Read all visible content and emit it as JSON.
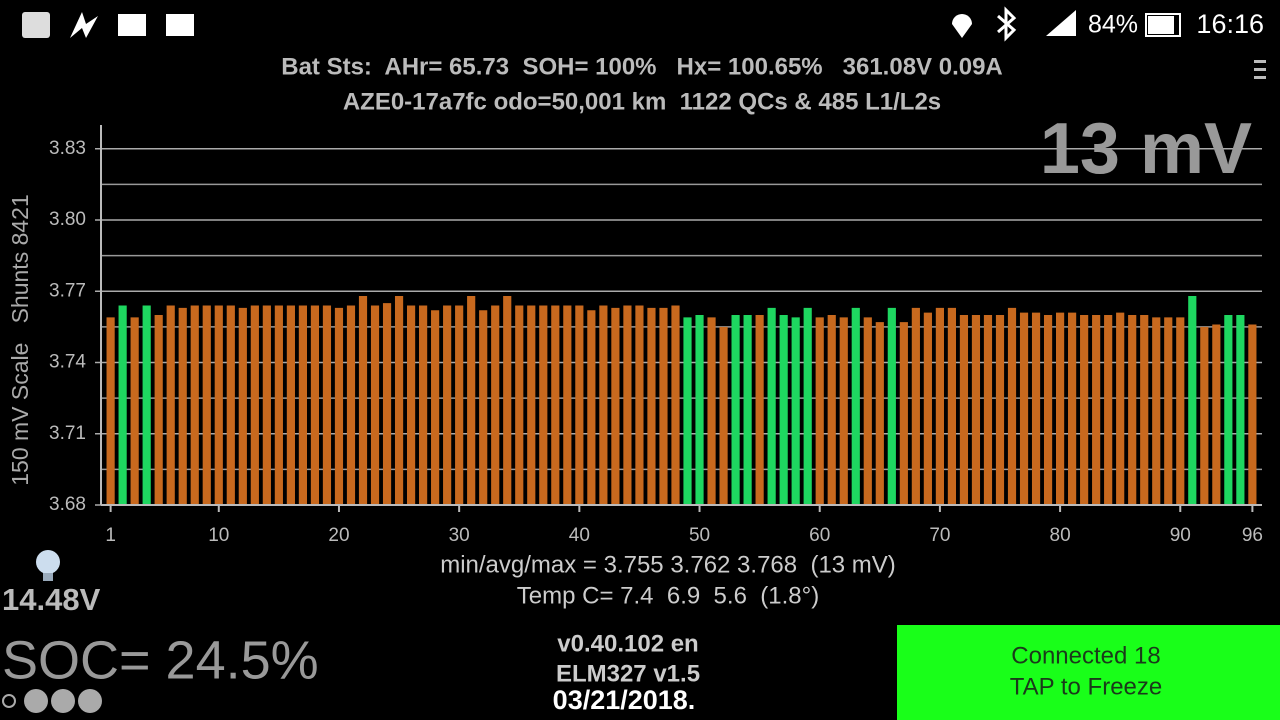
{
  "status_bar": {
    "battery": "84%",
    "time": "16:16"
  },
  "header": {
    "line1": "Bat Sts:  AHr= 65.73  SOH= 100%   Hx= 100.65%   361.08V 0.09A",
    "line2": "AZE0-17a7fc odo=50,001 km  1122 QCs & 485 L1/L2s"
  },
  "chart_data": {
    "type": "bar",
    "overlay": "13 mV",
    "ylabel": "150 mV Scale   Shunts 8421",
    "x": [
      1,
      2,
      3,
      4,
      5,
      6,
      7,
      8,
      9,
      10,
      11,
      12,
      13,
      14,
      15,
      16,
      17,
      18,
      19,
      20,
      21,
      22,
      23,
      24,
      25,
      26,
      27,
      28,
      29,
      30,
      31,
      32,
      33,
      34,
      35,
      36,
      37,
      38,
      39,
      40,
      41,
      42,
      43,
      44,
      45,
      46,
      47,
      48,
      49,
      50,
      51,
      52,
      53,
      54,
      55,
      56,
      57,
      58,
      59,
      60,
      61,
      62,
      63,
      64,
      65,
      66,
      67,
      68,
      69,
      70,
      71,
      72,
      73,
      74,
      75,
      76,
      77,
      78,
      79,
      80,
      81,
      82,
      83,
      84,
      85,
      86,
      87,
      88,
      89,
      90,
      91,
      92,
      93,
      94,
      95,
      96
    ],
    "values": [
      3.759,
      3.764,
      3.759,
      3.764,
      3.76,
      3.764,
      3.763,
      3.764,
      3.764,
      3.764,
      3.764,
      3.763,
      3.764,
      3.764,
      3.764,
      3.764,
      3.764,
      3.764,
      3.764,
      3.763,
      3.764,
      3.768,
      3.764,
      3.765,
      3.768,
      3.764,
      3.764,
      3.762,
      3.764,
      3.764,
      3.768,
      3.762,
      3.764,
      3.768,
      3.764,
      3.764,
      3.764,
      3.764,
      3.764,
      3.764,
      3.762,
      3.764,
      3.763,
      3.764,
      3.764,
      3.763,
      3.763,
      3.764,
      3.759,
      3.76,
      3.759,
      3.755,
      3.76,
      3.76,
      3.76,
      3.763,
      3.76,
      3.759,
      3.763,
      3.759,
      3.76,
      3.759,
      3.763,
      3.759,
      3.757,
      3.763,
      3.757,
      3.763,
      3.761,
      3.763,
      3.763,
      3.76,
      3.76,
      3.76,
      3.76,
      3.763,
      3.761,
      3.761,
      3.76,
      3.761,
      3.761,
      3.76,
      3.76,
      3.76,
      3.761,
      3.76,
      3.76,
      3.759,
      3.759,
      3.759,
      3.768,
      3.755,
      3.756,
      3.76,
      3.76,
      3.756
    ],
    "colors": [
      "#c8691e",
      "#1ed760",
      "#c8691e",
      "#1ed760",
      "#c8691e",
      "#c8691e",
      "#c8691e",
      "#c8691e",
      "#c8691e",
      "#c8691e",
      "#c8691e",
      "#c8691e",
      "#c8691e",
      "#c8691e",
      "#c8691e",
      "#c8691e",
      "#c8691e",
      "#c8691e",
      "#c8691e",
      "#c8691e",
      "#c8691e",
      "#c8691e",
      "#c8691e",
      "#c8691e",
      "#c8691e",
      "#c8691e",
      "#c8691e",
      "#c8691e",
      "#c8691e",
      "#c8691e",
      "#c8691e",
      "#c8691e",
      "#c8691e",
      "#c8691e",
      "#c8691e",
      "#c8691e",
      "#c8691e",
      "#c8691e",
      "#c8691e",
      "#c8691e",
      "#c8691e",
      "#c8691e",
      "#c8691e",
      "#c8691e",
      "#c8691e",
      "#c8691e",
      "#c8691e",
      "#c8691e",
      "#1ed760",
      "#1ed760",
      "#c8691e",
      "#c8691e",
      "#1ed760",
      "#1ed760",
      "#c8691e",
      "#1ed760",
      "#1ed760",
      "#1ed760",
      "#1ed760",
      "#c8691e",
      "#c8691e",
      "#c8691e",
      "#1ed760",
      "#c8691e",
      "#c8691e",
      "#1ed760",
      "#c8691e",
      "#c8691e",
      "#c8691e",
      "#c8691e",
      "#c8691e",
      "#c8691e",
      "#c8691e",
      "#c8691e",
      "#c8691e",
      "#c8691e",
      "#c8691e",
      "#c8691e",
      "#c8691e",
      "#c8691e",
      "#c8691e",
      "#c8691e",
      "#c8691e",
      "#c8691e",
      "#c8691e",
      "#c8691e",
      "#c8691e",
      "#c8691e",
      "#c8691e",
      "#c8691e",
      "#1ed760",
      "#c8691e",
      "#c8691e",
      "#1ed760",
      "#1ed760",
      "#c8691e"
    ],
    "xlim": [
      0.2,
      96.8
    ],
    "xticks": [
      1,
      10,
      20,
      30,
      40,
      50,
      60,
      70,
      80,
      90,
      96
    ],
    "ylim": [
      3.68,
      3.84
    ],
    "yticks": [
      3.68,
      3.71,
      3.74,
      3.77,
      {
        "value": 3.8,
        "label": "3.80"
      },
      3.83
    ],
    "minor_yticks": [
      3.695,
      3.725,
      3.755,
      3.785,
      3.815
    ],
    "grid": true
  },
  "stats": {
    "line1": "min/avg/max = 3.755 3.762 3.768  (13 mV)",
    "line2": "Temp C= 7.4  6.9  5.6  (1.8°)"
  },
  "aux_voltage": "14.48V",
  "soc": "SOC= 24.5%",
  "version": {
    "app": "v0.40.102 en",
    "adapter": "ELM327 v1.5",
    "date": "03/21/2018."
  },
  "button": {
    "line1": "Connected 18",
    "line2": "TAP to Freeze"
  }
}
